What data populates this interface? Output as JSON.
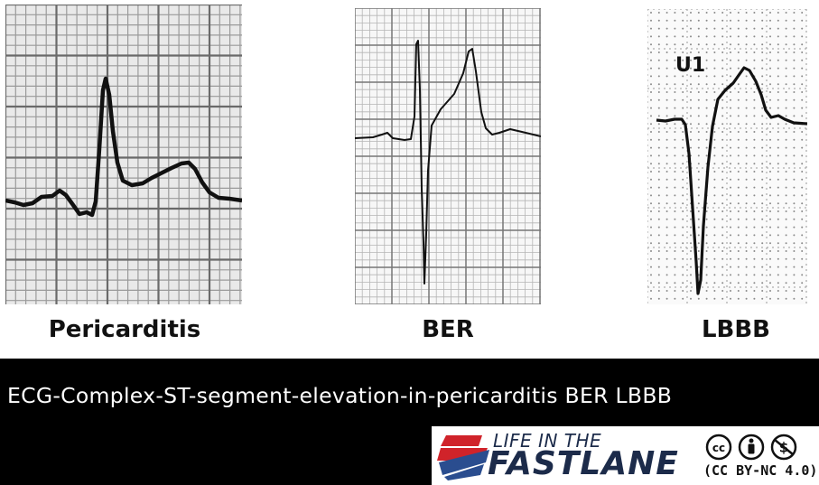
{
  "panels": {
    "pericarditis": {
      "label": "Pericarditis"
    },
    "ber": {
      "label": "BER"
    },
    "lbbb": {
      "label": "LBBB",
      "lead_label": "U1"
    }
  },
  "caption": "ECG-Complex-ST-segment-elevation-in-pericarditis BER LBBB",
  "logo": {
    "line1": "LIFE IN THE",
    "line2": "FASTLANE",
    "license": "(CC BY-NC 4.0)",
    "colors": {
      "red": "#d0232a",
      "blue": "#2a4d8f",
      "navy": "#1c2b4a"
    }
  },
  "icons": [
    "heart-cross-logo-icon",
    "cc-icon",
    "by-icon",
    "nc-icon"
  ]
}
